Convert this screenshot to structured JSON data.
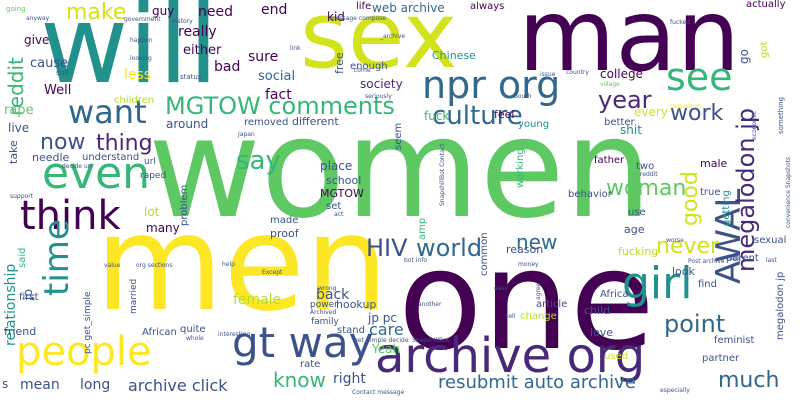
{
  "palette": {
    "dark_purple": "#440154",
    "indigo": "#3b528b",
    "blue": "#31688e",
    "teal": "#21918c",
    "green": "#35b779",
    "lime": "#5ec962",
    "yellow": "#fde725",
    "olive": "#b5de2b"
  },
  "words": [
    {
      "text": "women",
      "color": "#5ec962",
      "vertical": false
    },
    {
      "text": "men",
      "color": "#fde725",
      "vertical": false
    },
    {
      "text": "one",
      "color": "#440154",
      "vertical": false
    },
    {
      "text": "will",
      "color": "#21918c",
      "vertical": false
    },
    {
      "text": "sex",
      "color": "#d2e21b",
      "vertical": false
    },
    {
      "text": "man",
      "color": "#440154",
      "vertical": false
    },
    {
      "text": "archive org",
      "color": "#482878",
      "vertical": false
    },
    {
      "text": "people",
      "color": "#fde725",
      "vertical": false
    },
    {
      "text": "see",
      "color": "#35b779",
      "vertical": false
    },
    {
      "text": "npr org",
      "color": "#31688e",
      "vertical": false
    },
    {
      "text": "girl",
      "color": "#21918c",
      "vertical": false
    },
    {
      "text": "AWAL",
      "color": "#3b528b",
      "vertical": true
    },
    {
      "text": "gt way",
      "color": "#3b528b",
      "vertical": false
    },
    {
      "text": "even",
      "color": "#35b779",
      "vertical": false
    },
    {
      "text": "think",
      "color": "#440154",
      "vertical": false
    },
    {
      "text": "want",
      "color": "#31688e",
      "vertical": false
    },
    {
      "text": "time",
      "color": "#21918c",
      "vertical": true
    },
    {
      "text": "reddit",
      "color": "#35b779",
      "vertical": true
    },
    {
      "text": "make",
      "color": "#d2e21b",
      "vertical": false
    },
    {
      "text": "MGTOW comments",
      "color": "#35b779",
      "vertical": false
    },
    {
      "text": "culture",
      "color": "#31688e",
      "vertical": false
    },
    {
      "text": "year",
      "color": "#482878",
      "vertical": false
    },
    {
      "text": "megalodon jp",
      "color": "#482878",
      "vertical": true
    },
    {
      "text": "work",
      "color": "#3b528b",
      "vertical": false
    },
    {
      "text": "say",
      "color": "#35b779",
      "vertical": false
    },
    {
      "text": "now",
      "color": "#3b528b",
      "vertical": false
    },
    {
      "text": "thing",
      "color": "#482878",
      "vertical": false
    },
    {
      "text": "woman",
      "color": "#5ec962",
      "vertical": false
    },
    {
      "text": "good",
      "color": "#d2e21b",
      "vertical": true
    },
    {
      "text": "HIV",
      "color": "#3b528b",
      "vertical": false
    },
    {
      "text": "world",
      "color": "#31688e",
      "vertical": false
    },
    {
      "text": "new",
      "color": "#31688e",
      "vertical": false
    },
    {
      "text": "never",
      "color": "#d2e21b",
      "vertical": false
    },
    {
      "text": "point",
      "color": "#31688e",
      "vertical": false
    },
    {
      "text": "resubmit auto archive",
      "color": "#31688e",
      "vertical": false
    },
    {
      "text": "much",
      "color": "#31688e",
      "vertical": false
    },
    {
      "text": "know",
      "color": "#35b779",
      "vertical": false
    },
    {
      "text": "archive click",
      "color": "#3b528b",
      "vertical": false
    },
    {
      "text": "mean",
      "color": "#3b528b",
      "vertical": false
    },
    {
      "text": "long",
      "color": "#3b528b",
      "vertical": false
    },
    {
      "text": "right",
      "color": "#3b528b",
      "vertical": false
    },
    {
      "text": "Yeah",
      "color": "#5ec962",
      "vertical": false
    },
    {
      "text": "jp pc",
      "color": "#3b528b",
      "vertical": false
    },
    {
      "text": "care",
      "color": "#31688e",
      "vertical": false
    },
    {
      "text": "back",
      "color": "#3b528b",
      "vertical": false
    },
    {
      "text": "female",
      "color": "#b5de2b",
      "vertical": false
    },
    {
      "text": "relationship",
      "color": "#21918c",
      "vertical": true
    },
    {
      "text": "jp",
      "color": "#3b528b",
      "vertical": true
    },
    {
      "text": "really",
      "color": "#440154",
      "vertical": false
    },
    {
      "text": "need",
      "color": "#440154",
      "vertical": false
    },
    {
      "text": "end",
      "color": "#440154",
      "vertical": false
    },
    {
      "text": "sure",
      "color": "#440154",
      "vertical": false
    },
    {
      "text": "fact",
      "color": "#440154",
      "vertical": false
    },
    {
      "text": "social",
      "color": "#31688e",
      "vertical": false
    },
    {
      "text": "bad",
      "color": "#440154",
      "vertical": false
    },
    {
      "text": "either",
      "color": "#440154",
      "vertical": false
    },
    {
      "text": "less",
      "color": "#fde725",
      "vertical": false
    },
    {
      "text": "cause",
      "color": "#3b528b",
      "vertical": false
    },
    {
      "text": "Well",
      "color": "#440154",
      "vertical": false
    },
    {
      "text": "give",
      "color": "#440154",
      "vertical": false
    },
    {
      "text": "rape",
      "color": "#5ec962",
      "vertical": false
    },
    {
      "text": "live",
      "color": "#3b528b",
      "vertical": false
    },
    {
      "text": "take",
      "color": "#3b528b",
      "vertical": true
    },
    {
      "text": "needle",
      "color": "#3b528b",
      "vertical": false
    },
    {
      "text": "understand",
      "color": "#3b528b",
      "vertical": false
    },
    {
      "text": "around",
      "color": "#3b528b",
      "vertical": false
    },
    {
      "text": "removed",
      "color": "#3b528b",
      "vertical": false
    },
    {
      "text": "different",
      "color": "#3b528b",
      "vertical": false
    },
    {
      "text": "society",
      "color": "#482878",
      "vertical": false
    },
    {
      "text": "web archive",
      "color": "#31688e",
      "vertical": false
    },
    {
      "text": "enough",
      "color": "#3b528b",
      "vertical": false
    },
    {
      "text": "kid",
      "color": "#440154",
      "vertical": false
    },
    {
      "text": "guy",
      "color": "#440154",
      "vertical": false
    },
    {
      "text": "life",
      "color": "#440154",
      "vertical": false
    },
    {
      "text": "free",
      "color": "#3b528b",
      "vertical": true
    },
    {
      "text": "always",
      "color": "#440154",
      "vertical": false
    },
    {
      "text": "Chinese",
      "color": "#21918c",
      "vertical": false
    },
    {
      "text": "feel",
      "color": "#440154",
      "vertical": false
    },
    {
      "text": "young",
      "color": "#21918c",
      "vertical": false
    },
    {
      "text": "fuck",
      "color": "#35b779",
      "vertical": false
    },
    {
      "text": "every",
      "color": "#d2e21b",
      "vertical": false
    },
    {
      "text": "shit",
      "color": "#21918c",
      "vertical": false
    },
    {
      "text": "better",
      "color": "#3b528b",
      "vertical": false
    },
    {
      "text": "college",
      "color": "#440154",
      "vertical": false
    },
    {
      "text": "go",
      "color": "#3b528b",
      "vertical": true
    },
    {
      "text": "got",
      "color": "#b5de2b",
      "vertical": true
    },
    {
      "text": "actually",
      "color": "#440154",
      "vertical": false
    },
    {
      "text": "children",
      "color": "#b5de2b",
      "vertical": false
    },
    {
      "text": "seem",
      "color": "#3b528b",
      "vertical": true
    },
    {
      "text": "lot",
      "color": "#b5de2b",
      "vertical": false
    },
    {
      "text": "many",
      "color": "#440154",
      "vertical": false
    },
    {
      "text": "raped",
      "color": "#3b528b",
      "vertical": false
    },
    {
      "text": "url",
      "color": "#3b528b",
      "vertical": false
    },
    {
      "text": "place",
      "color": "#3b528b",
      "vertical": false
    },
    {
      "text": "school",
      "color": "#3b528b",
      "vertical": false
    },
    {
      "text": "MGTOW",
      "color": "#440154",
      "vertical": false
    },
    {
      "text": "set",
      "color": "#3b528b",
      "vertical": false
    },
    {
      "text": "made",
      "color": "#3b528b",
      "vertical": false
    },
    {
      "text": "proof",
      "color": "#3b528b",
      "vertical": false
    },
    {
      "text": "said",
      "color": "#35b779",
      "vertical": true
    },
    {
      "text": "working",
      "color": "#35b779",
      "vertical": true
    },
    {
      "text": "amp",
      "color": "#35b779",
      "vertical": true
    },
    {
      "text": "common",
      "color": "#3b528b",
      "vertical": true
    },
    {
      "text": "father",
      "color": "#440154",
      "vertical": false
    },
    {
      "text": "two",
      "color": "#3b528b",
      "vertical": false
    },
    {
      "text": "male",
      "color": "#440154",
      "vertical": false
    },
    {
      "text": "true",
      "color": "#3b528b",
      "vertical": false
    },
    {
      "text": "getting",
      "color": "#21918c",
      "vertical": true
    },
    {
      "text": "behavior",
      "color": "#3b528b",
      "vertical": false
    },
    {
      "text": "use",
      "color": "#3b528b",
      "vertical": false
    },
    {
      "text": "age",
      "color": "#3b528b",
      "vertical": false
    },
    {
      "text": "sexual",
      "color": "#3b528b",
      "vertical": false
    },
    {
      "text": "reason",
      "color": "#3b528b",
      "vertical": false
    },
    {
      "text": "fucking",
      "color": "#b5de2b",
      "vertical": false
    },
    {
      "text": "look",
      "color": "#3b528b",
      "vertical": false
    },
    {
      "text": "article",
      "color": "#3b528b",
      "vertical": false
    },
    {
      "text": "change",
      "color": "#b5de2b",
      "vertical": false
    },
    {
      "text": "hookup",
      "color": "#3b528b",
      "vertical": false
    },
    {
      "text": "problem",
      "color": "#3b528b",
      "vertical": true
    },
    {
      "text": "parent",
      "color": "#3b528b",
      "vertical": false
    },
    {
      "text": "find",
      "color": "#3b528b",
      "vertical": false
    },
    {
      "text": "Africa",
      "color": "#3b528b",
      "vertical": false
    },
    {
      "text": "child",
      "color": "#3b528b",
      "vertical": false
    },
    {
      "text": "love",
      "color": "#3b528b",
      "vertical": false
    },
    {
      "text": "feminist",
      "color": "#3b528b",
      "vertical": false
    },
    {
      "text": "partner",
      "color": "#3b528b",
      "vertical": false
    },
    {
      "text": "used",
      "color": "#d2e21b",
      "vertical": false
    },
    {
      "text": "megalodon jp",
      "color": "#3b528b",
      "vertical": true
    },
    {
      "text": "first",
      "color": "#3b528b",
      "vertical": false
    },
    {
      "text": "friend",
      "color": "#3b528b",
      "vertical": false
    },
    {
      "text": "pc get_simple",
      "color": "#3b528b",
      "vertical": true
    },
    {
      "text": "married",
      "color": "#3b528b",
      "vertical": true
    },
    {
      "text": "African",
      "color": "#3b528b",
      "vertical": false
    },
    {
      "text": "quite",
      "color": "#3b528b",
      "vertical": false
    },
    {
      "text": "power",
      "color": "#3b528b",
      "vertical": false
    },
    {
      "text": "family",
      "color": "#3b528b",
      "vertical": false
    },
    {
      "text": "stand",
      "color": "#3b528b",
      "vertical": false
    },
    {
      "text": "rate",
      "color": "#3b528b",
      "vertical": false
    },
    {
      "text": "s",
      "color": "#3b528b",
      "vertical": false
    },
    {
      "text": "going",
      "color": "#5ec962",
      "vertical": false
    },
    {
      "text": "anyway",
      "color": "#3b528b",
      "vertical": false
    },
    {
      "text": "government",
      "color": "#3b528b",
      "vertical": false
    },
    {
      "text": "history",
      "color": "#3b528b",
      "vertical": false
    },
    {
      "text": "happen",
      "color": "#3b528b",
      "vertical": false
    },
    {
      "text": "looking",
      "color": "#3b528b",
      "vertical": false
    },
    {
      "text": "still",
      "color": "#3b528b",
      "vertical": false
    },
    {
      "text": "status",
      "color": "#3b528b",
      "vertical": false
    },
    {
      "text": "message compose",
      "color": "#3b528b",
      "vertical": false
    },
    {
      "text": "_archive",
      "color": "#3b528b",
      "vertical": false
    },
    {
      "text": "seriously",
      "color": "#3b528b",
      "vertical": false
    },
    {
      "text": "country",
      "color": "#3b528b",
      "vertical": false
    },
    {
      "text": "issue",
      "color": "#3b528b",
      "vertical": false
    },
    {
      "text": "village",
      "color": "#5ec962",
      "vertical": false
    },
    {
      "text": "South",
      "color": "#3b528b",
      "vertical": false
    },
    {
      "text": "fucked",
      "color": "#3b528b",
      "vertical": false
    },
    {
      "text": "population",
      "color": "#fde725",
      "vertical": false
    },
    {
      "text": "economic",
      "color": "#3b528b",
      "vertical": true
    },
    {
      "text": "something",
      "color": "#3b528b",
      "vertical": true
    },
    {
      "text": "convenience Snapshots",
      "color": "#3b528b",
      "vertical": true
    },
    {
      "text": "reddit",
      "color": "#3b528b",
      "vertical": false
    },
    {
      "text": "SnapshillBot Contact",
      "color": "#3b528b",
      "vertical": true
    },
    {
      "text": "decide url",
      "color": "#3b528b",
      "vertical": false
    },
    {
      "text": "support",
      "color": "#3b528b",
      "vertical": false
    },
    {
      "text": "value",
      "color": "#3b528b",
      "vertical": false
    },
    {
      "text": "org sections",
      "color": "#3b528b",
      "vertical": false
    },
    {
      "text": "help",
      "color": "#3b528b",
      "vertical": false
    },
    {
      "text": "Except",
      "color": "#3b528b",
      "vertical": false
    },
    {
      "text": "wrong",
      "color": "#3b528b",
      "vertical": false
    },
    {
      "text": "Archived",
      "color": "#3b528b",
      "vertical": false
    },
    {
      "text": "whole",
      "color": "#3b528b",
      "vertical": false
    },
    {
      "text": "interesting",
      "color": "#3b528b",
      "vertical": false
    },
    {
      "text": "get_simple decide",
      "color": "#3b528b",
      "vertical": false
    },
    {
      "text": "Contact message",
      "color": "#3b528b",
      "vertical": false
    },
    {
      "text": "another",
      "color": "#3b528b",
      "vertical": false
    },
    {
      "text": "SnapshillBot",
      "color": "#3b528b",
      "vertical": false
    },
    {
      "text": "tell",
      "color": "#3b528b",
      "vertical": false
    },
    {
      "text": "Post archive",
      "color": "#3b528b",
      "vertical": false
    },
    {
      "text": "especially",
      "color": "#3b528b",
      "vertical": false
    },
    {
      "text": "agree",
      "color": "#3b528b",
      "vertical": true
    },
    {
      "text": "money",
      "color": "#3b528b",
      "vertical": false
    },
    {
      "text": "bot info",
      "color": "#3b528b",
      "vertical": false
    },
    {
      "text": "easy",
      "color": "#3b528b",
      "vertical": false
    },
    {
      "text": "worse",
      "color": "#3b528b",
      "vertical": false
    },
    {
      "text": "last",
      "color": "#3b528b",
      "vertical": false
    },
    {
      "text": "case",
      "color": "#3b528b",
      "vertical": false
    },
    {
      "text": "Japan",
      "color": "#3b528b",
      "vertical": false
    },
    {
      "text": "link",
      "color": "#3b528b",
      "vertical": false
    },
    {
      "text": "come",
      "color": "#3b528b",
      "vertical": false
    },
    {
      "text": "act",
      "color": "#3b528b",
      "vertical": false
    }
  ]
}
